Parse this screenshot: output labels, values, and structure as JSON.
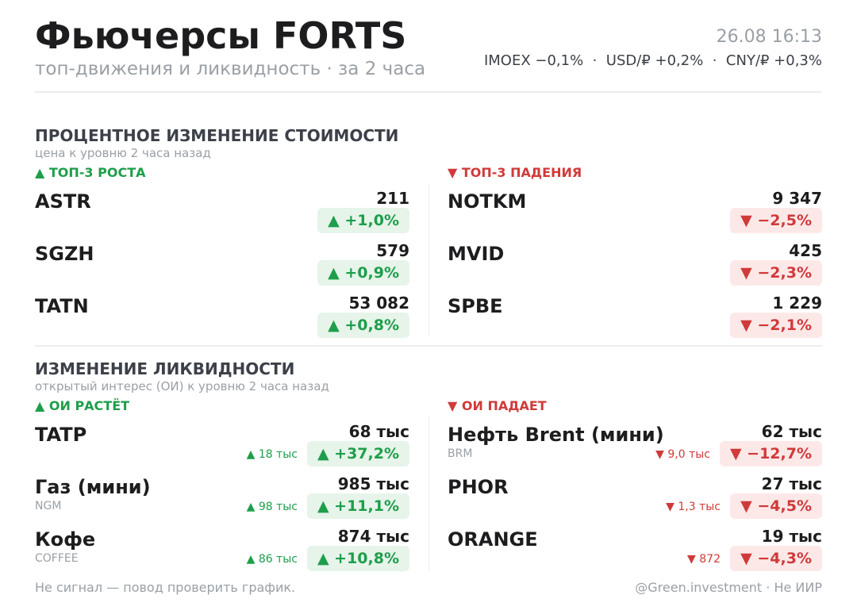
{
  "header": {
    "title": "Фьючерсы FORTS",
    "subtitle": "топ-движения и ликвидность · за 2 часа",
    "timestamp": "26.08 16:13",
    "markets": "IMOEX −0,1%  ·  USD/₽ +0,2%  ·  CNY/₽ +0,3%"
  },
  "price": {
    "title": "ПРОЦЕНТНОЕ ИЗМЕНЕНИЕ СТОИМОСТИ",
    "subtitle": "цена к уровню 2 часа назад",
    "up_label": "▲ ТОП-3 РОСТА",
    "down_label": "▼ ТОП-3 ПАДЕНИЯ",
    "up": [
      {
        "name": "ASTR",
        "value": "211",
        "change": "▲ +1,0%"
      },
      {
        "name": "SGZH",
        "value": "579",
        "change": "▲ +0,9%"
      },
      {
        "name": "TATN",
        "value": "53 082",
        "change": "▲ +0,8%"
      }
    ],
    "down": [
      {
        "name": "NOTKM",
        "value": "9 347",
        "change": "▼ −2,5%"
      },
      {
        "name": "MVID",
        "value": "425",
        "change": "▼ −2,3%"
      },
      {
        "name": "SPBE",
        "value": "1 229",
        "change": "▼ −2,1%"
      }
    ]
  },
  "liquidity": {
    "title": "ИЗМЕНЕНИЕ ЛИКВИДНОСТИ",
    "subtitle": "открытый интерес (ОИ) к уровню 2 часа назад",
    "up_label": "▲ ОИ РАСТЁТ",
    "down_label": "▼ ОИ ПАДАЕТ",
    "up": [
      {
        "name": "TATP",
        "value": "68 тыс",
        "delta": "▲ 18 тыс",
        "change": "▲ +37,2%"
      },
      {
        "name": "Газ (мини)",
        "code": "NGM",
        "value": "985 тыс",
        "delta": "▲ 98 тыс",
        "change": "▲ +11,1%"
      },
      {
        "name": "Кофе",
        "code": "COFFEE",
        "value": "874 тыс",
        "delta": "▲ 86 тыс",
        "change": "▲ +10,8%"
      }
    ],
    "down": [
      {
        "name": "Нефть Brent (мини)",
        "code": "BRM",
        "value": "62 тыс",
        "delta": "▼ 9,0 тыс",
        "change": "▼ −12,7%"
      },
      {
        "name": "PHOR",
        "value": "27 тыс",
        "delta": "▼ 1,3 тыс",
        "change": "▼ −4,5%"
      },
      {
        "name": "ORANGE",
        "value": "19 тыс",
        "delta": "▼ 872",
        "change": "▼ −4,3%"
      }
    ]
  },
  "footer": {
    "note": "Не сигнал — повод проверить график.",
    "credit": "@Green.investment · Не ИИР"
  }
}
